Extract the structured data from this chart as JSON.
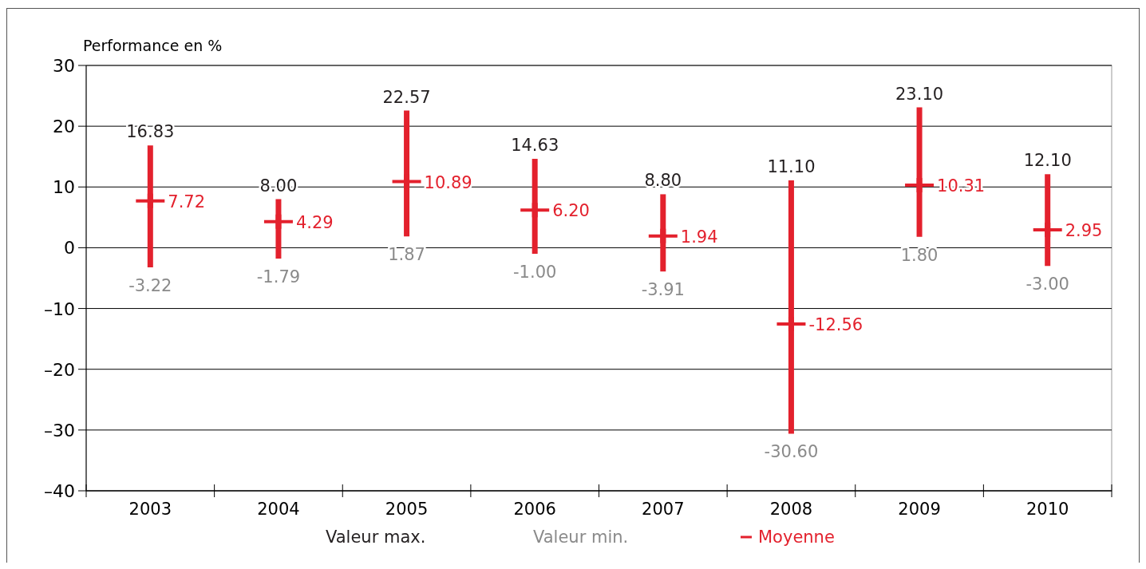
{
  "chart_data": {
    "type": "scatter",
    "ylabel": "Performance en %",
    "categories": [
      "2003",
      "2004",
      "2005",
      "2006",
      "2007",
      "2008",
      "2009",
      "2010"
    ],
    "ylim": [
      -40,
      30
    ],
    "yticks": [
      {
        "value": -40,
        "label": "–40"
      },
      {
        "value": -30,
        "label": "–30"
      },
      {
        "value": -20,
        "label": "–20"
      },
      {
        "value": -10,
        "label": "–10"
      },
      0,
      10,
      20,
      30
    ],
    "grid": "y",
    "legend": "bottom",
    "marker": "cross",
    "series": [
      {
        "name": "Moyenne",
        "color": "#e3212d",
        "values": [
          7.72,
          4.29,
          10.89,
          6.2,
          1.94,
          -12.56,
          10.31,
          2.95
        ],
        "value_labels": [
          "7.72",
          "4.29",
          "10.89",
          "6.20",
          "1.94",
          "-12.56",
          "10.31",
          "2.95"
        ],
        "errors": [
          [
            -3.22,
            16.83
          ],
          [
            -1.79,
            8.0
          ],
          [
            1.87,
            22.57
          ],
          [
            -1.0,
            14.63
          ],
          [
            -3.91,
            8.8
          ],
          [
            -30.6,
            11.1
          ],
          [
            1.8,
            23.1
          ],
          [
            -3.0,
            12.1
          ]
        ]
      }
    ],
    "annotations": [
      {
        "text": "16.83",
        "x": "2003",
        "y": 16.83
      },
      {
        "text": "8.00",
        "x": "2004",
        "y": 8.0
      },
      {
        "text": "22.57",
        "x": "2005",
        "y": 22.57
      },
      {
        "text": "14.63",
        "x": "2006",
        "y": 14.63
      },
      {
        "text": "8.80",
        "x": "2007",
        "y": 8.8
      },
      {
        "text": "11.10",
        "x": "2008",
        "y": 11.1
      },
      {
        "text": "23.10",
        "x": "2009",
        "y": 23.1
      },
      {
        "text": "12.10",
        "x": "2010",
        "y": 12.1
      },
      {
        "text": "-3.22",
        "x": "2003",
        "y": -3.22
      },
      {
        "text": "-1.79",
        "x": "2004",
        "y": -1.79
      },
      {
        "text": "1.87",
        "x": "2005",
        "y": 1.87
      },
      {
        "text": "-1.00",
        "x": "2006",
        "y": -1.0
      },
      {
        "text": "-3.91",
        "x": "2007",
        "y": -3.91
      },
      {
        "text": "-30.60",
        "x": "2008",
        "y": -30.6
      },
      {
        "text": "1.80",
        "x": "2009",
        "y": 1.8
      },
      {
        "text": "-3.00",
        "x": "2010",
        "y": -3.0
      },
      "Valeur max.",
      "Valeur min."
    ]
  }
}
